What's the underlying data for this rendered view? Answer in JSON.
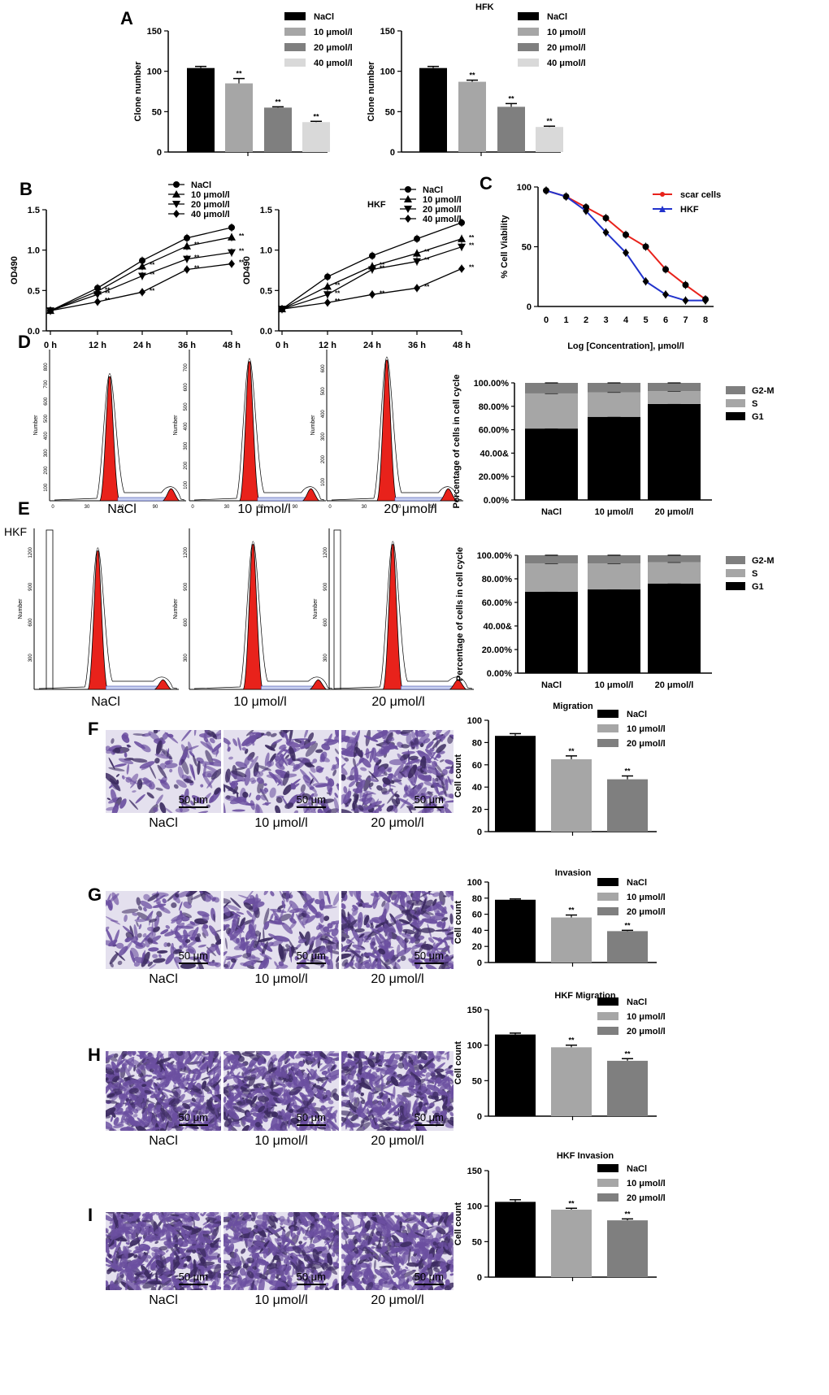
{
  "colors": {
    "black": "#000000",
    "gray1": "#a6a6a6",
    "gray2": "#7f7f7f",
    "gray3": "#d9d9d9",
    "red": "#e8221b",
    "blue": "#2233cc",
    "crystal": "#6b4fa0"
  },
  "panel_letters": {
    "A": "A",
    "B": "B",
    "C": "C",
    "D": "D",
    "E": "E",
    "F": "F",
    "G": "G",
    "H": "H",
    "I": "I"
  },
  "sig": "**",
  "micro_labels": {
    "D": [
      "NaCl",
      "10 μmol/l",
      "20 μmol/l"
    ],
    "E": [
      "NaCl",
      "10 μmol/l",
      "20 μmol/l"
    ],
    "F": [
      "NaCl",
      "10 μmol/l",
      "20 μmol/l"
    ],
    "G": [
      "NaCl",
      "10 μmol/l",
      "20 μmol/l"
    ],
    "H": [
      "NaCl",
      "10 μmol/l",
      "20 μmol/l"
    ],
    "I": [
      "NaCl",
      "10 μmol/l",
      "20 μmol/l"
    ]
  },
  "scalebar": "50 μm",
  "e_side_label": "HKF",
  "flow_ylabel": "Number",
  "chart_data": [
    {
      "id": "A1",
      "type": "bar",
      "title": "",
      "categories": [
        "NaCl",
        "10 μmol/l",
        "20 μmol/l",
        "40 μmol/l"
      ],
      "values": [
        104,
        85,
        55,
        37
      ],
      "errors": [
        2,
        6,
        1,
        1
      ],
      "sig": [
        "",
        "**",
        "**",
        "**"
      ],
      "ylabel": "Clone number",
      "ylim": [
        0,
        150
      ],
      "yticks": [
        0,
        50,
        100,
        150
      ]
    },
    {
      "id": "A2",
      "type": "bar",
      "title": "HFK",
      "categories": [
        "NaCl",
        "10 μmol/l",
        "20 μmol/l",
        "40 μmol/l"
      ],
      "values": [
        104,
        87,
        56,
        31
      ],
      "errors": [
        2,
        2,
        4,
        1
      ],
      "sig": [
        "",
        "**",
        "**",
        "**"
      ],
      "ylabel": "Clone number",
      "ylim": [
        0,
        150
      ],
      "yticks": [
        0,
        50,
        100,
        150
      ]
    },
    {
      "id": "B1",
      "type": "line",
      "title": "",
      "x": [
        "0 h",
        "12 h",
        "24 h",
        "36 h",
        "48 h"
      ],
      "series": [
        {
          "name": "NaCl",
          "marker": "circle",
          "values": [
            0.25,
            0.53,
            0.87,
            1.15,
            1.28
          ]
        },
        {
          "name": "10 μmol/l",
          "marker": "triangle-up",
          "values": [
            0.25,
            0.49,
            0.8,
            1.05,
            1.16
          ]
        },
        {
          "name": "20 μmol/l",
          "marker": "triangle-down",
          "values": [
            0.25,
            0.45,
            0.68,
            0.89,
            0.97
          ]
        },
        {
          "name": "40 μmol/l",
          "marker": "diamond",
          "values": [
            0.25,
            0.36,
            0.48,
            0.76,
            0.83
          ]
        }
      ],
      "sig": [
        "",
        "**",
        "**",
        "**",
        "**"
      ],
      "ylabel": "OD490",
      "ylim": [
        0,
        1.5
      ],
      "yticks": [
        "0.0",
        "0.5",
        "1.0",
        "1.5"
      ]
    },
    {
      "id": "B2",
      "type": "line",
      "title": "HKF",
      "x": [
        "0 h",
        "12 h",
        "24 h",
        "36 h",
        "48 h"
      ],
      "series": [
        {
          "name": "NaCl",
          "marker": "circle",
          "values": [
            0.27,
            0.67,
            0.93,
            1.14,
            1.34
          ]
        },
        {
          "name": "10 μmol/l",
          "marker": "triangle-up",
          "values": [
            0.27,
            0.55,
            0.8,
            0.96,
            1.14
          ]
        },
        {
          "name": "20 μmol/l",
          "marker": "triangle-down",
          "values": [
            0.27,
            0.45,
            0.76,
            0.86,
            1.04
          ]
        },
        {
          "name": "40 μmol/l",
          "marker": "diamond",
          "values": [
            0.27,
            0.35,
            0.45,
            0.53,
            0.77
          ]
        }
      ],
      "sig": [
        "",
        "**",
        "**",
        "**",
        "**"
      ],
      "ylabel": "OD490",
      "ylim": [
        0,
        1.5
      ],
      "yticks": [
        "0.0",
        "0.5",
        "1.0",
        "1.5"
      ]
    },
    {
      "id": "C",
      "type": "line",
      "title": "",
      "x": [
        0,
        1,
        2,
        3,
        4,
        5,
        6,
        7,
        8
      ],
      "series": [
        {
          "name": "scar cells",
          "color": "#e8221b",
          "values": [
            97,
            92,
            83,
            74,
            60,
            50,
            31,
            18,
            6
          ]
        },
        {
          "name": "HKF",
          "color": "#2233cc",
          "values": [
            97,
            92,
            80,
            62,
            45,
            21,
            10,
            5,
            5
          ]
        }
      ],
      "xlabel": "Log [Concentration], μmol/l",
      "ylabel": "% Cell Viability",
      "ylim": [
        0,
        100
      ],
      "yticks": [
        0,
        50,
        100
      ],
      "xticks": [
        0,
        1,
        2,
        3,
        4,
        5,
        6,
        7,
        8
      ]
    },
    {
      "id": "D_flow",
      "type": "histogram",
      "panels": [
        {
          "ytick_labels": [
            "100",
            "200",
            "300",
            "400",
            "500",
            "600",
            "700",
            "800"
          ],
          "xtick_labels": [
            "0",
            "30",
            "60",
            "90"
          ]
        },
        {
          "ytick_labels": [
            "100",
            "200",
            "300",
            "400",
            "500",
            "600",
            "700"
          ],
          "xtick_labels": [
            "0",
            "30",
            "60",
            "90"
          ]
        },
        {
          "ytick_labels": [
            "100",
            "200",
            "300",
            "400",
            "500",
            "600"
          ],
          "xtick_labels": [
            "0",
            "30",
            "60",
            "90"
          ]
        }
      ]
    },
    {
      "id": "D_bar",
      "type": "bar",
      "stacked": true,
      "categories": [
        "NaCl",
        "10 μmol/l",
        "20 μmol/l"
      ],
      "series": [
        {
          "name": "G1",
          "values": [
            61,
            71,
            82
          ]
        },
        {
          "name": "S",
          "values": [
            30,
            21,
            11
          ]
        },
        {
          "name": "G2-M",
          "values": [
            9,
            8,
            7
          ]
        }
      ],
      "legend": [
        "G2-M",
        "S",
        "G1"
      ],
      "ylabel": "Percentage of cells in cell cycle",
      "yticks": [
        "0.00%",
        "20.00%",
        "40.00&",
        "60.00%",
        "80.00%",
        "100.00%"
      ],
      "ylim": [
        0,
        100
      ]
    },
    {
      "id": "E_flow",
      "type": "histogram",
      "panels": [
        {
          "ytick_labels": [
            "300",
            "600",
            "900",
            "1200"
          ],
          "xtick_labels": []
        },
        {
          "ytick_labels": [
            "300",
            "600",
            "900",
            "1200"
          ],
          "xtick_labels": []
        },
        {
          "ytick_labels": [
            "300",
            "600",
            "900",
            "1200"
          ],
          "xtick_labels": []
        }
      ]
    },
    {
      "id": "E_bar",
      "type": "bar",
      "stacked": true,
      "categories": [
        "NaCl",
        "10 μmol/l",
        "20 μmol/l"
      ],
      "series": [
        {
          "name": "G1",
          "values": [
            69,
            71,
            76
          ]
        },
        {
          "name": "S",
          "values": [
            24,
            22,
            18
          ]
        },
        {
          "name": "G2-M",
          "values": [
            7,
            7,
            6
          ]
        }
      ],
      "legend": [
        "G2-M",
        "S",
        "G1"
      ],
      "ylabel": "Percentage of cells in cell cycle",
      "yticks": [
        "0.00%",
        "20.00%",
        "40.00&",
        "60.00%",
        "80.00%",
        "100.00%"
      ],
      "ylim": [
        0,
        100
      ]
    },
    {
      "id": "F",
      "type": "bar",
      "title": "Migration",
      "categories": [
        "NaCl",
        "10 μmol/l",
        "20 μmol/l"
      ],
      "values": [
        86,
        65,
        47
      ],
      "errors": [
        2,
        3,
        3
      ],
      "sig": [
        "",
        "**",
        "**"
      ],
      "ylabel": "Cell count",
      "ylim": [
        0,
        100
      ],
      "yticks": [
        0,
        20,
        40,
        60,
        80,
        100
      ]
    },
    {
      "id": "G",
      "type": "bar",
      "title": "Invasion",
      "categories": [
        "NaCl",
        "10 μmol/l",
        "20 μmol/l"
      ],
      "values": [
        78,
        56,
        39
      ],
      "errors": [
        1,
        3,
        1
      ],
      "sig": [
        "",
        "**",
        "**"
      ],
      "ylabel": "Cell count",
      "ylim": [
        0,
        100
      ],
      "yticks": [
        0,
        20,
        40,
        60,
        80,
        100
      ]
    },
    {
      "id": "H",
      "type": "bar",
      "title": "HKF Migration",
      "categories": [
        "NaCl",
        "10 μmol/l",
        "20 μmol/l"
      ],
      "values": [
        115,
        97,
        78
      ],
      "errors": [
        2,
        3,
        3
      ],
      "sig": [
        "",
        "**",
        "**"
      ],
      "ylabel": "Cell count",
      "ylim": [
        0,
        150
      ],
      "yticks": [
        0,
        50,
        100,
        150
      ]
    },
    {
      "id": "I",
      "type": "bar",
      "title": "HKF Invasion",
      "categories": [
        "NaCl",
        "10 μmol/l",
        "20 μmol/l"
      ],
      "values": [
        106,
        95,
        80
      ],
      "errors": [
        3,
        2,
        2
      ],
      "sig": [
        "",
        "**",
        "**"
      ],
      "ylabel": "Cell count",
      "ylim": [
        0,
        150
      ],
      "yticks": [
        0,
        50,
        100,
        150
      ]
    }
  ]
}
